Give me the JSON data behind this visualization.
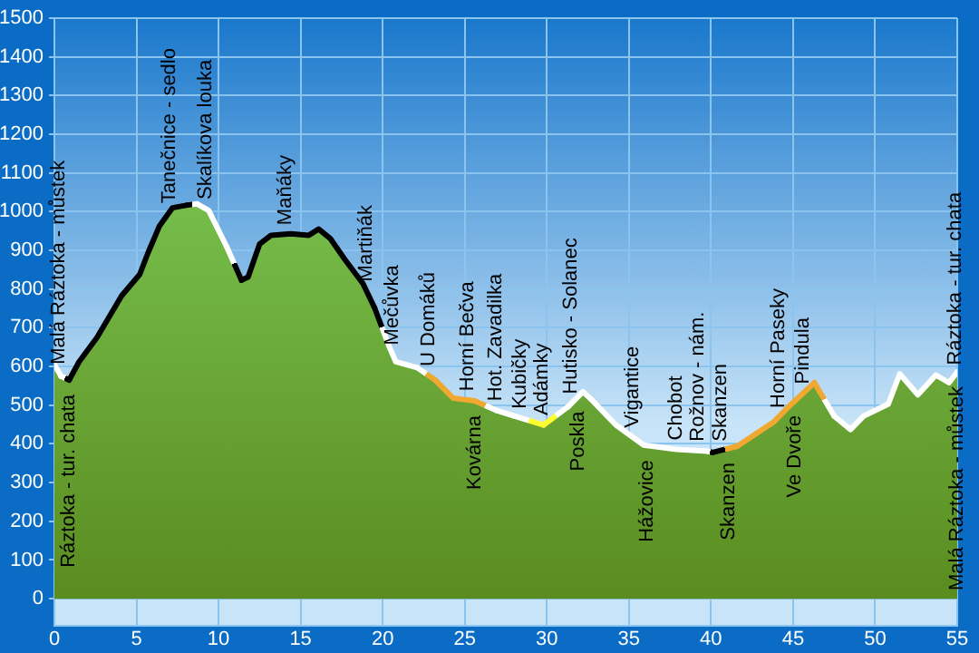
{
  "chart_data": {
    "type": "area",
    "x": [
      0,
      0.4,
      0.9,
      1.5,
      2.6,
      4.1,
      5.2,
      5.7,
      6.4,
      7.2,
      8.1,
      8.7,
      9.4,
      10.5,
      11.4,
      11.8,
      12.5,
      13.2,
      14.4,
      15.5,
      16.1,
      16.8,
      17.7,
      18.8,
      19.5,
      20.4,
      20.8,
      22.1,
      23.2,
      24.3,
      25.6,
      26.9,
      28.0,
      29.8,
      31.3,
      32.2,
      32.8,
      34.2,
      35.9,
      37.9,
      39.8,
      40.1,
      41.6,
      43.8,
      44.9,
      46.3,
      47.5,
      48.5,
      49.3,
      50.8,
      51.5,
      52.6,
      53.7,
      54.5,
      55.0
    ],
    "series": [
      {
        "color": "#76bd4a",
        "values": [
          605,
          575,
          565,
          612,
          675,
          783,
          838,
          893,
          963,
          1010,
          1017,
          1020,
          1003,
          909,
          823,
          831,
          916,
          939,
          943,
          939,
          955,
          931,
          876,
          814,
          752,
          651,
          612,
          597,
          565,
          518,
          511,
          487,
          472,
          449,
          496,
          535,
          511,
          449,
          397,
          386,
          381,
          378,
          394,
          456,
          503,
          558,
          472,
          437,
          472,
          503,
          581,
          527,
          578,
          558,
          586
        ],
        "colors": [
          "#ffffff",
          "#ffffff",
          "#000000",
          "#000000",
          "#000000",
          "#000000",
          "#000000",
          "#000000",
          "#000000",
          "#000000",
          "#000000",
          "#ffffff",
          "#ffffff",
          "#ffffff",
          "#000000",
          "#000000",
          "#000000",
          "#000000",
          "#000000",
          "#000000",
          "#000000",
          "#000000",
          "#000000",
          "#000000",
          "#000000",
          "#ffffff",
          "#ffffff",
          "#ffffff",
          "#f0a830",
          "#f0a830",
          "#f0a830",
          "#ffffff",
          "#ffffff",
          "#ffff30",
          "#ffffff",
          "#ffffff",
          "#ffffff",
          "#ffffff",
          "#ffffff",
          "#ffffff",
          "#ffffff",
          "#000000",
          "#f0a830",
          "#f0a830",
          "#f0a830",
          "#f0a830",
          "#ffffff",
          "#ffffff",
          "#ffffff",
          "#ffffff",
          "#ffffff",
          "#ffffff",
          "#ffffff",
          "#ffffff",
          "#ffffff"
        ]
      }
    ],
    "xlim": [
      0,
      55
    ],
    "xticks": [
      0,
      5,
      10,
      15,
      20,
      25,
      30,
      35,
      40,
      45,
      50,
      55
    ],
    "ylim": [
      -70,
      1500
    ],
    "yticks": [
      0,
      100,
      200,
      300,
      400,
      500,
      600,
      700,
      800,
      900,
      1000,
      1100,
      1200,
      1300,
      1400,
      1500
    ],
    "grid": true,
    "legend": false,
    "marker": "none",
    "annotations": [
      {
        "text": "Malá Ráztoka - můstek",
        "x": 0.3,
        "y": 582
      },
      {
        "text": "Ráztoka - tur. chata",
        "x": 0.9,
        "y": 565
      },
      {
        "text": "Tanečnice - sedlo",
        "x": 7.0,
        "y": 998
      },
      {
        "text": "Skalíkova louka",
        "x": 9.2,
        "y": 1008
      },
      {
        "text": "Maňáky",
        "x": 14.1,
        "y": 942
      },
      {
        "text": "Martiňák",
        "x": 19.0,
        "y": 796
      },
      {
        "text": "Mečůvka",
        "x": 20.6,
        "y": 632
      },
      {
        "text": "U Domáků",
        "x": 22.8,
        "y": 577
      },
      {
        "text": "Horní Bečva",
        "x": 25.2,
        "y": 513
      },
      {
        "text": "Kovárna",
        "x": 25.6,
        "y": 511
      },
      {
        "text": "Hot. Zavadilka",
        "x": 26.9,
        "y": 487
      },
      {
        "text": "Kubičky",
        "x": 28.4,
        "y": 467
      },
      {
        "text": "Adámky",
        "x": 29.7,
        "y": 450
      },
      {
        "text": "Hutisko - Solanec",
        "x": 31.5,
        "y": 505
      },
      {
        "text": "Poskla",
        "x": 31.9,
        "y": 522
      },
      {
        "text": "Vigantice",
        "x": 35.2,
        "y": 418
      },
      {
        "text": "Hážovice",
        "x": 36.1,
        "y": 396
      },
      {
        "text": "Chobot",
        "x": 37.9,
        "y": 386
      },
      {
        "text": "Rožnov - nám.",
        "x": 39.2,
        "y": 383
      },
      {
        "text": "Skanzen",
        "x": 40.6,
        "y": 383
      },
      {
        "text": "Skanzen",
        "x": 41.1,
        "y": 389
      },
      {
        "text": "Horní Paseky",
        "x": 44.1,
        "y": 469
      },
      {
        "text": "Ve Dvoře",
        "x": 45.1,
        "y": 511
      },
      {
        "text": "Pindula",
        "x": 45.6,
        "y": 531
      },
      {
        "text": "Ráztoka - tur. chata",
        "x": 54.9,
        "y": 580
      },
      {
        "text": "Malá Ráztoka - můstek",
        "x": 55.0,
        "y": 586
      }
    ]
  }
}
